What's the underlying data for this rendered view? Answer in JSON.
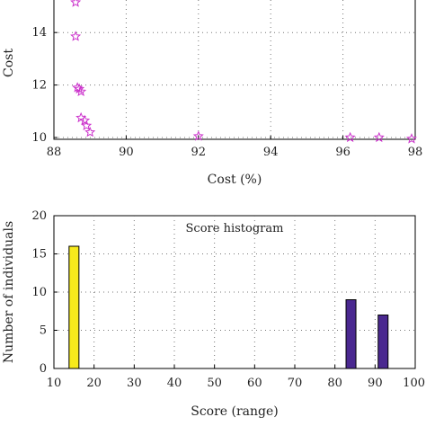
{
  "chart_data": [
    {
      "type": "scatter",
      "title": "",
      "xlabel": "Cost (%)",
      "ylabel": "Cost",
      "xlim": [
        88,
        98
      ],
      "ylim": [
        10,
        15.2
      ],
      "xticks": [
        "88",
        "90",
        "92",
        "94",
        "96",
        "98"
      ],
      "yticks": [
        "10",
        "12",
        "14"
      ],
      "grid": true,
      "marker": "star",
      "marker_color": "#cc33cc",
      "points": [
        {
          "x": 88.6,
          "y": 15.15
        },
        {
          "x": 88.6,
          "y": 13.85
        },
        {
          "x": 88.65,
          "y": 11.9
        },
        {
          "x": 88.75,
          "y": 11.75
        },
        {
          "x": 88.7,
          "y": 11.85
        },
        {
          "x": 88.75,
          "y": 10.75
        },
        {
          "x": 88.85,
          "y": 10.65
        },
        {
          "x": 88.9,
          "y": 10.45
        },
        {
          "x": 89.0,
          "y": 10.2
        },
        {
          "x": 92.0,
          "y": 10.05
        },
        {
          "x": 96.2,
          "y": 10.0
        },
        {
          "x": 97.0,
          "y": 10.0
        },
        {
          "x": 97.9,
          "y": 9.95
        }
      ]
    },
    {
      "type": "bar",
      "title": "Score histogram",
      "xlabel": "Score (range)",
      "ylabel": "Number of individuals",
      "xlim": [
        10,
        100
      ],
      "ylim": [
        0,
        20
      ],
      "xticks": [
        "10",
        "20",
        "30",
        "40",
        "50",
        "60",
        "70",
        "80",
        "90",
        "100"
      ],
      "yticks": [
        "0",
        "5",
        "10",
        "15",
        "20"
      ],
      "grid": true,
      "bars": [
        {
          "x": 15,
          "value": 16,
          "color": "#f7ea1c"
        },
        {
          "x": 84,
          "value": 9,
          "color": "#4a2890"
        },
        {
          "x": 92,
          "value": 7,
          "color": "#4a2890"
        }
      ]
    }
  ]
}
